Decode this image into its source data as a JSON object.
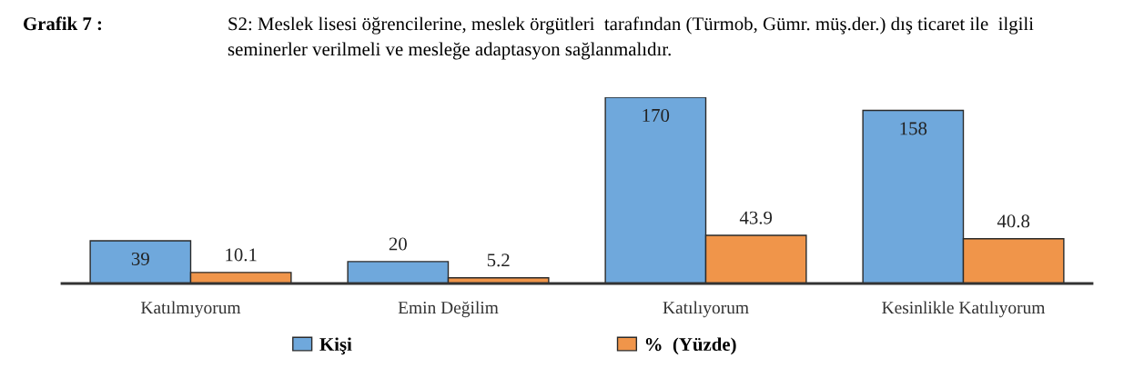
{
  "chart_data": {
    "type": "bar",
    "title": "Grafik 7 :",
    "subtitle": "S2: Meslek lisesi öğrencilerine, meslek örgütleri  tarafından (Türmob, Gümr. müş.der.) dış ticaret ile  ilgili seminerler verilmeli ve mesleğe adaptasyon sağlanmalıdır.",
    "categories": [
      "Katılmıyorum",
      "Emin Değilim",
      "Katılıyorum",
      "Kesinlikle Katılıyorum"
    ],
    "series": [
      {
        "name": "Kişi",
        "color": "#6fa8dc",
        "values": [
          39,
          20,
          170,
          158
        ]
      },
      {
        "name": "%  (Yüzde)",
        "color": "#f0954a",
        "values": [
          10.1,
          5.2,
          43.9,
          40.8
        ]
      }
    ],
    "data_labels": true,
    "legend": "bottom",
    "grid": false
  }
}
